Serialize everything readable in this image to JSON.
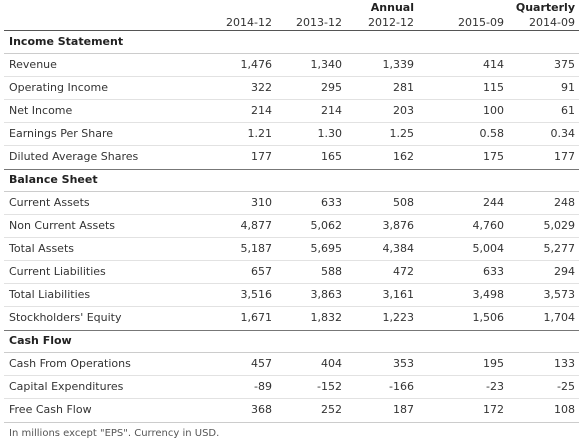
{
  "header": {
    "groups": [
      "Annual",
      "Quarterly"
    ],
    "columns": [
      "2014-12",
      "2013-12",
      "2012-12",
      "2015-09",
      "2014-09"
    ]
  },
  "sections": [
    {
      "title": "Income Statement",
      "rows": [
        {
          "label": "Revenue",
          "values": [
            "1,476",
            "1,340",
            "1,339",
            "414",
            "375"
          ]
        },
        {
          "label": "Operating Income",
          "values": [
            "322",
            "295",
            "281",
            "115",
            "91"
          ]
        },
        {
          "label": "Net Income",
          "values": [
            "214",
            "214",
            "203",
            "100",
            "61"
          ]
        },
        {
          "label": "Earnings Per Share",
          "values": [
            "1.21",
            "1.30",
            "1.25",
            "0.58",
            "0.34"
          ]
        },
        {
          "label": "Diluted Average Shares",
          "values": [
            "177",
            "165",
            "162",
            "175",
            "177"
          ]
        }
      ]
    },
    {
      "title": "Balance Sheet",
      "rows": [
        {
          "label": "Current Assets",
          "values": [
            "310",
            "633",
            "508",
            "244",
            "248"
          ]
        },
        {
          "label": "Non Current Assets",
          "values": [
            "4,877",
            "5,062",
            "3,876",
            "4,760",
            "5,029"
          ]
        },
        {
          "label": "Total Assets",
          "values": [
            "5,187",
            "5,695",
            "4,384",
            "5,004",
            "5,277"
          ]
        },
        {
          "label": "Current Liabilities",
          "values": [
            "657",
            "588",
            "472",
            "633",
            "294"
          ]
        },
        {
          "label": "Total Liabilities",
          "values": [
            "3,516",
            "3,863",
            "3,161",
            "3,498",
            "3,573"
          ]
        },
        {
          "label": "Stockholders' Equity",
          "values": [
            "1,671",
            "1,832",
            "1,223",
            "1,506",
            "1,704"
          ]
        }
      ]
    },
    {
      "title": "Cash Flow",
      "rows": [
        {
          "label": "Cash From Operations",
          "values": [
            "457",
            "404",
            "353",
            "195",
            "133"
          ]
        },
        {
          "label": "Capital Expenditures",
          "values": [
            "-89",
            "-152",
            "-166",
            "-23",
            "-25"
          ]
        },
        {
          "label": "Free Cash Flow",
          "values": [
            "368",
            "252",
            "187",
            "172",
            "108"
          ]
        }
      ]
    }
  ],
  "footnote": "In millions except \"EPS\". Currency in USD."
}
